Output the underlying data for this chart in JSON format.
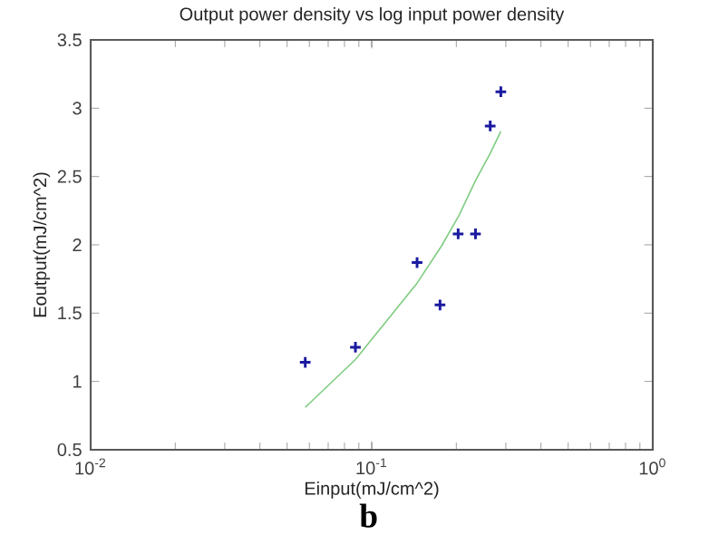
{
  "chart_data": {
    "type": "scatter",
    "title": "Output power density vs log input power density",
    "xlabel": "Einput(mJ/cm^2)",
    "ylabel": "Eoutput(mJ/cm^2)",
    "annotations": [
      "b"
    ],
    "log": "x",
    "grid": false,
    "marker": "cross",
    "xlim": [
      0.01,
      1
    ],
    "xticks": [
      {
        "value": 0.01,
        "label": "10$^{-2}$"
      },
      {
        "value": 0.1,
        "label": "10$^{-1}$"
      },
      {
        "value": 1,
        "label": "10$^{0}$"
      }
    ],
    "ylim": [
      0.5,
      3.5
    ],
    "yticks": [
      0.5,
      1,
      1.5,
      2,
      2.5,
      3,
      3.5
    ],
    "series": [
      {
        "color": "#1a1aa0",
        "x": [
          0.058,
          0.0875,
          0.145,
          0.175,
          0.203,
          0.234,
          0.264,
          0.288
        ],
        "values": [
          1.14,
          1.25,
          1.87,
          1.56,
          2.08,
          2.08,
          2.87,
          3.12
        ]
      },
      {
        "type": "line",
        "color": "#7fcc80",
        "marker": "none",
        "line_style": "solid",
        "x": [
          0.058,
          0.0875,
          0.145,
          0.177,
          0.205,
          0.234,
          0.264,
          0.288
        ],
        "values": [
          0.81,
          1.16,
          1.72,
          1.99,
          2.22,
          2.47,
          2.67,
          2.83
        ]
      }
    ]
  }
}
